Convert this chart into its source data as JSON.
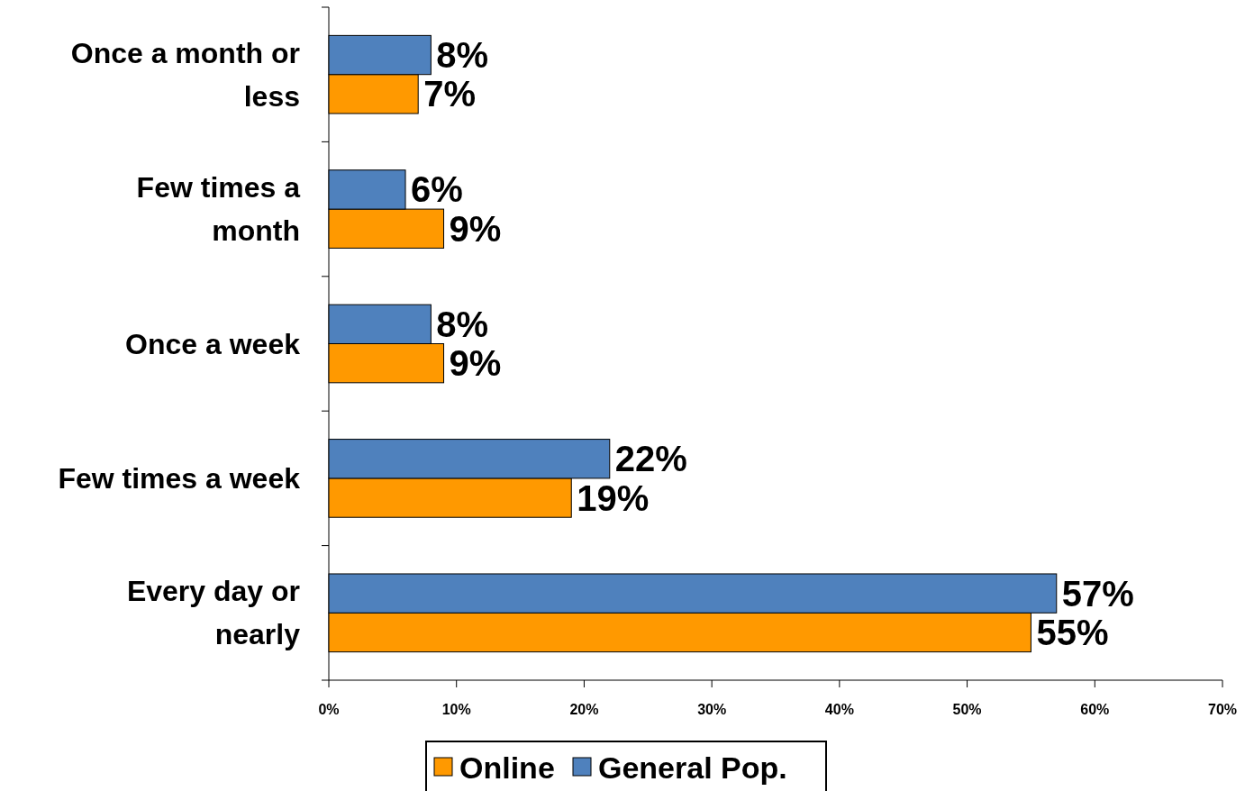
{
  "chart_data": {
    "type": "bar",
    "orientation": "horizontal",
    "categories": [
      "Once a month or less",
      "Few times a month",
      "Once a week",
      "Few times a week",
      "Every day or nearly"
    ],
    "series": [
      {
        "name": "Online",
        "color": "#ff9900",
        "values": [
          7,
          9,
          9,
          19,
          55
        ],
        "value_labels": [
          "7%",
          "9%",
          "9%",
          "19%",
          "55%"
        ]
      },
      {
        "name": "General Pop.",
        "color": "#4f81bd",
        "values": [
          8,
          6,
          8,
          22,
          57
        ],
        "value_labels": [
          "8%",
          "6%",
          "8%",
          "22%",
          "57%"
        ]
      }
    ],
    "xlim": [
      0,
      70
    ],
    "xticks": [
      {
        "value": 0,
        "label": "0%"
      },
      {
        "value": 10,
        "label": "10%"
      },
      {
        "value": 20,
        "label": "20%"
      },
      {
        "value": 30,
        "label": "30%"
      },
      {
        "value": 40,
        "label": "40%"
      },
      {
        "value": 50,
        "label": "50%"
      },
      {
        "value": 60,
        "label": "60%"
      },
      {
        "value": 70,
        "label": "70%"
      }
    ],
    "legend": "bottom"
  }
}
